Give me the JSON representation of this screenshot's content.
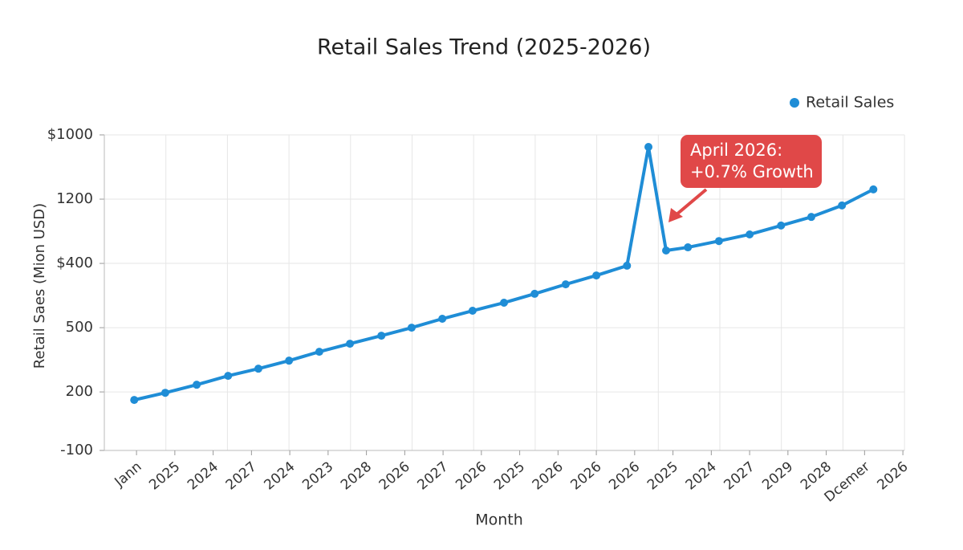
{
  "chart_data": {
    "type": "line",
    "title": "Retail Sales Trend (2025-2026)",
    "x_label": "Month",
    "y_label": "Retail Saes (Mion USD)",
    "categories": [
      "Jann",
      "2025",
      "2024",
      "2027",
      "2024",
      "2023",
      "2028",
      "2026",
      "2027",
      "2026",
      "2025",
      "2026",
      "2026",
      "2026",
      "2025",
      "2024",
      "2027",
      "2029",
      "2028",
      "Dcemer",
      "2026"
    ],
    "xlim": [
      -0.84,
      20.04
    ],
    "ylim": [
      -100,
      1000
    ],
    "yticks": [
      {
        "value": 1000,
        "label": "$1000"
      },
      {
        "value": 776,
        "label": "1200"
      },
      {
        "value": 552,
        "label": "$400"
      },
      {
        "value": 328,
        "label": "500"
      },
      {
        "value": 104,
        "label": "200"
      },
      -100
    ],
    "grid": true,
    "legend": "top-right",
    "series": [
      {
        "name": "Retail Sales",
        "color": "#1f8dd6",
        "x": [
          -0.06,
          0.75,
          1.57,
          2.39,
          3.18,
          3.98,
          4.77,
          5.57,
          6.39,
          7.18,
          7.98,
          8.77,
          9.59,
          10.39,
          11.2,
          12.0,
          12.8,
          13.36,
          13.82,
          14.39,
          15.2,
          16.0,
          16.82,
          17.61,
          18.41,
          19.23
        ],
        "values": [
          76,
          101,
          129,
          160,
          185,
          213,
          244,
          272,
          300,
          328,
          359,
          387,
          415,
          446,
          479,
          510,
          544,
          958,
          597,
          608,
          630,
          653,
          684,
          714,
          754,
          810
        ]
      }
    ],
    "annotation": {
      "lines": [
        "April 2026:",
        "+0.7% Growth"
      ],
      "color": "#e04848"
    }
  }
}
